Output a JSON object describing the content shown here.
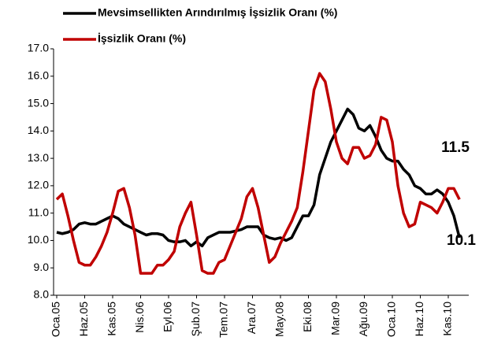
{
  "chart_data": {
    "type": "line",
    "categories": [
      "Oca.05",
      null,
      null,
      null,
      null,
      "Haz.05",
      null,
      null,
      null,
      null,
      "Kas.05",
      null,
      null,
      null,
      null,
      "Nis.06",
      null,
      null,
      null,
      null,
      "Eyl.06",
      null,
      null,
      null,
      null,
      "Şub.07",
      null,
      null,
      null,
      null,
      "Tem.07",
      null,
      null,
      null,
      null,
      "Ara.07",
      null,
      null,
      null,
      null,
      "May.08",
      null,
      null,
      null,
      null,
      "Eki.08",
      null,
      null,
      null,
      null,
      "Mar.09",
      null,
      null,
      null,
      null,
      "Ağu.09",
      null,
      null,
      null,
      null,
      "Oca.10",
      null,
      null,
      null,
      null,
      "Haz.10",
      null,
      null,
      null,
      null,
      "Kas.10",
      null,
      null
    ],
    "series": [
      {
        "name": "Mevsimsellikten Arındırılmış İşsizlik Oranı (%)",
        "color": "#000000",
        "values": [
          10.3,
          10.25,
          10.3,
          10.4,
          10.6,
          10.65,
          10.6,
          10.6,
          10.7,
          10.8,
          10.9,
          10.8,
          10.6,
          10.5,
          10.4,
          10.3,
          10.2,
          10.25,
          10.25,
          10.2,
          10.0,
          9.95,
          9.95,
          10.0,
          9.8,
          9.95,
          9.8,
          10.1,
          10.2,
          10.3,
          10.3,
          10.3,
          10.35,
          10.4,
          10.5,
          10.5,
          10.5,
          10.2,
          10.1,
          10.05,
          10.1,
          10.0,
          10.1,
          10.5,
          10.9,
          10.9,
          11.3,
          12.4,
          13.0,
          13.6,
          14.0,
          14.4,
          14.8,
          14.6,
          14.1,
          14.0,
          14.2,
          13.8,
          13.3,
          13.0,
          12.9,
          12.9,
          12.6,
          12.4,
          12.0,
          11.9,
          11.7,
          11.7,
          11.85,
          11.7,
          11.4,
          10.9,
          10.1
        ]
      },
      {
        "name": "İşsizlik Oranı (%)",
        "color": "#c00000",
        "values": [
          11.5,
          11.7,
          10.9,
          10.0,
          9.2,
          9.1,
          9.1,
          9.4,
          9.8,
          10.3,
          11.0,
          11.8,
          11.9,
          11.2,
          10.2,
          8.8,
          8.8,
          8.8,
          9.1,
          9.1,
          9.3,
          9.6,
          10.5,
          11.0,
          11.4,
          10.2,
          8.9,
          8.8,
          8.8,
          9.2,
          9.3,
          9.8,
          10.3,
          10.8,
          11.6,
          11.9,
          11.2,
          10.2,
          9.2,
          9.4,
          9.9,
          10.3,
          10.7,
          11.2,
          12.5,
          14.0,
          15.5,
          16.1,
          15.8,
          14.8,
          13.6,
          13.0,
          12.8,
          13.4,
          13.4,
          13.0,
          13.1,
          13.5,
          14.5,
          14.4,
          13.6,
          12.0,
          11.0,
          10.5,
          10.6,
          11.4,
          11.3,
          11.2,
          11.0,
          11.4,
          11.9,
          11.9,
          11.5
        ]
      }
    ],
    "ylim": [
      8,
      17
    ],
    "yticks": [
      {
        "value": 8,
        "label": "8.0"
      },
      {
        "value": 9,
        "label": "9.0"
      },
      {
        "value": 10,
        "label": "10.0"
      },
      {
        "value": 11,
        "label": "11.0"
      },
      {
        "value": 12,
        "label": "12.0"
      },
      {
        "value": 13,
        "label": "13.0"
      },
      {
        "value": 14,
        "label": "14.0"
      },
      {
        "value": 15,
        "label": "15.0"
      },
      {
        "value": 16,
        "label": "16.0"
      },
      {
        "value": 17,
        "label": "17.0"
      }
    ]
  }
}
